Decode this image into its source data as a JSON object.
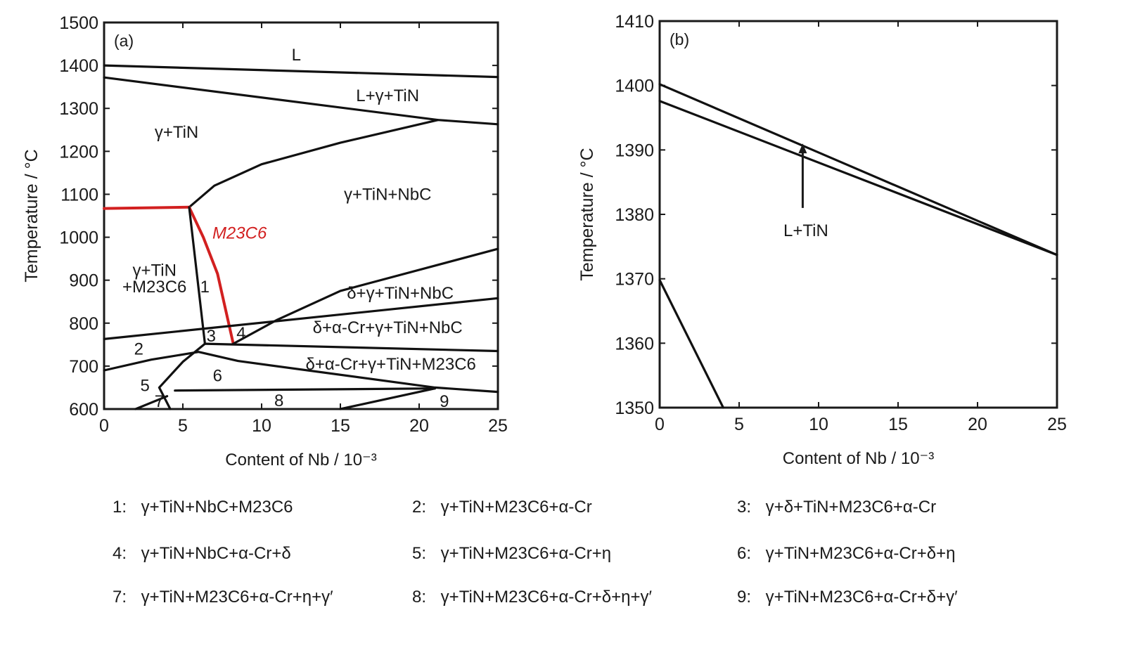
{
  "chart_data": [
    {
      "type": "line",
      "panel_label": "(a)",
      "xlabel": "Content of Nb / 10⁻³",
      "ylabel": "Temperature / °C",
      "xlim": [
        0,
        25
      ],
      "ylim": [
        600,
        1500
      ],
      "xticks": [
        "0",
        "5",
        "10",
        "15",
        "20",
        "25"
      ],
      "yticks": [
        "600",
        "700",
        "800",
        "900",
        "1000",
        "1100",
        "1200",
        "1300",
        "1400",
        "1500"
      ],
      "series": [
        {
          "color": "#111111",
          "points": [
            [
              0,
              1400
            ],
            [
              25,
              1373
            ]
          ]
        },
        {
          "color": "#111111",
          "points": [
            [
              0,
              1372
            ],
            [
              21.2,
              1273
            ],
            [
              25,
              1263
            ]
          ]
        },
        {
          "color": "#111111",
          "points": [
            [
              5.4,
              1070
            ],
            [
              7,
              1120
            ],
            [
              10,
              1170
            ],
            [
              15,
              1220
            ],
            [
              21.2,
              1273
            ]
          ]
        },
        {
          "color": "#d22020",
          "points": [
            [
              0,
              1067
            ],
            [
              5.4,
              1070
            ]
          ]
        },
        {
          "color": "#d22020",
          "points": [
            [
              5.4,
              1070
            ],
            [
              6.3,
              1000
            ],
            [
              7.2,
              915
            ],
            [
              8.2,
              752
            ]
          ]
        },
        {
          "color": "#111111",
          "points": [
            [
              5.4,
              1070
            ],
            [
              6.4,
              752
            ]
          ]
        },
        {
          "color": "#111111",
          "points": [
            [
              0,
              763
            ],
            [
              25,
              858
            ]
          ]
        },
        {
          "color": "#111111",
          "points": [
            [
              6.4,
              752
            ],
            [
              25,
              735
            ]
          ]
        },
        {
          "color": "#111111",
          "points": [
            [
              8.2,
              752
            ],
            [
              11,
              808
            ],
            [
              15,
              875
            ],
            [
              25,
              973
            ]
          ]
        },
        {
          "color": "#111111",
          "points": [
            [
              0,
              690
            ],
            [
              3,
              715
            ],
            [
              6,
              733
            ],
            [
              8.5,
              712
            ],
            [
              21,
              650
            ],
            [
              25,
              640
            ]
          ]
        },
        {
          "color": "#111111",
          "points": [
            [
              6.4,
              752
            ],
            [
              5,
              710
            ],
            [
              3.5,
              650
            ],
            [
              4.2,
              600
            ]
          ]
        },
        {
          "color": "#111111",
          "points": [
            [
              4.5,
              643
            ],
            [
              21,
              648
            ]
          ]
        },
        {
          "color": "#111111",
          "points": [
            [
              15,
              600
            ],
            [
              21,
              648
            ]
          ]
        },
        {
          "color": "#111111",
          "points": [
            [
              2,
              600
            ],
            [
              4,
              630
            ]
          ]
        }
      ],
      "annotations": [
        {
          "text": "L",
          "x": 12.2,
          "y": 1425
        },
        {
          "text": "L+γ+TiN",
          "x": 18,
          "y": 1330
        },
        {
          "text": "γ+TiN",
          "x": 4.6,
          "y": 1245
        },
        {
          "text": "γ+TiN+NbC",
          "x": 18,
          "y": 1100
        },
        {
          "text": "M23C6",
          "x": 8.6,
          "y": 1010,
          "color": "#d22020"
        },
        {
          "text": "γ+TiN",
          "x": 3.2,
          "y": 923
        },
        {
          "text": "+M23C6",
          "x": 3.2,
          "y": 885
        },
        {
          "text": "1",
          "x": 6.4,
          "y": 885
        },
        {
          "text": "δ+γ+TiN+NbC",
          "x": 18.8,
          "y": 870
        },
        {
          "text": "δ+α-Cr+γ+TiN+NbC",
          "x": 18,
          "y": 790
        },
        {
          "text": "2",
          "x": 2.2,
          "y": 740
        },
        {
          "text": "3",
          "x": 6.8,
          "y": 770
        },
        {
          "text": "4",
          "x": 8.7,
          "y": 777
        },
        {
          "text": "δ+α-Cr+γ+TiN+M23C6",
          "x": 18.2,
          "y": 705
        },
        {
          "text": "5",
          "x": 2.6,
          "y": 655
        },
        {
          "text": "6",
          "x": 7.2,
          "y": 678
        },
        {
          "text": "7",
          "x": 3.5,
          "y": 618
        },
        {
          "text": "8",
          "x": 11.1,
          "y": 620
        },
        {
          "text": "9",
          "x": 21.6,
          "y": 618
        }
      ]
    },
    {
      "type": "line",
      "panel_label": "(b)",
      "xlabel": "Content of Nb / 10⁻³",
      "ylabel": "Temperature / °C",
      "xlim": [
        0,
        25
      ],
      "ylim": [
        1350,
        1410
      ],
      "xticks": [
        "0",
        "5",
        "10",
        "15",
        "20",
        "25"
      ],
      "yticks": [
        "1350",
        "1360",
        "1370",
        "1380",
        "1390",
        "1400",
        "1410"
      ],
      "series": [
        {
          "color": "#111111",
          "points": [
            [
              0,
              1400.2
            ],
            [
              25,
              1373.7
            ]
          ]
        },
        {
          "color": "#111111",
          "points": [
            [
              0,
              1397.6
            ],
            [
              25,
              1373.7
            ]
          ]
        },
        {
          "color": "#111111",
          "points": [
            [
              0,
              1369.8
            ],
            [
              4,
              1350
            ]
          ]
        }
      ],
      "annotations": [
        {
          "text": "L+TiN",
          "x": 9.2,
          "y": 1377.5
        }
      ],
      "arrow": {
        "from": [
          9,
          1381
        ],
        "to": [
          9,
          1391
        ]
      }
    }
  ],
  "legend": [
    {
      "num": "1:",
      "text": "γ+TiN+NbC+M23C6"
    },
    {
      "num": "2:",
      "text": "γ+TiN+M23C6+α-Cr"
    },
    {
      "num": "3:",
      "text": "γ+δ+TiN+M23C6+α-Cr"
    },
    {
      "num": "4:",
      "text": "γ+TiN+NbC+α-Cr+δ"
    },
    {
      "num": "5:",
      "text": "γ+TiN+M23C6+α-Cr+η"
    },
    {
      "num": "6:",
      "text": "γ+TiN+M23C6+α-Cr+δ+η"
    },
    {
      "num": "7:",
      "text": "γ+TiN+M23C6+α-Cr+η+γ′"
    },
    {
      "num": "8:",
      "text": "γ+TiN+M23C6+α-Cr+δ+η+γ′"
    },
    {
      "num": "9:",
      "text": "γ+TiN+M23C6+α-Cr+δ+γ′"
    }
  ]
}
